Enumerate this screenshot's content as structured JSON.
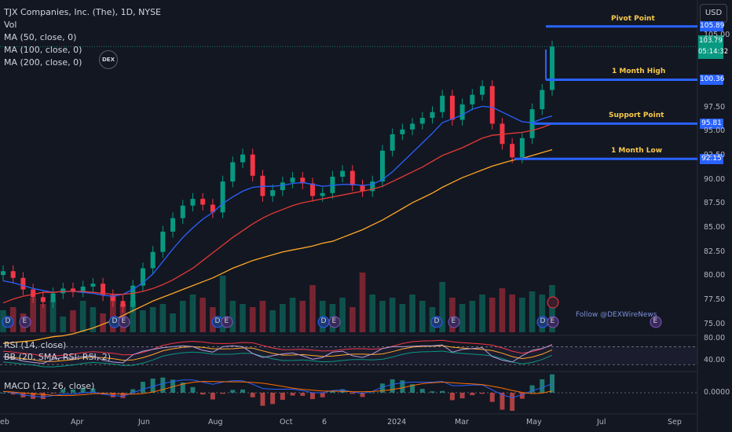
{
  "legend": {
    "title": "TJX Companies, Inc. (The), 1D, NYSE",
    "vol": "Vol",
    "ma50": "MA (50, close, 0)",
    "ma100": "MA (100, close, 0)",
    "ma200": "MA (200, close, 0)"
  },
  "currency_button": "USD",
  "logo_text": "DEX",
  "follow_text": "Follow @DEXWireNews",
  "rsi_legend": "RSI (14, close)",
  "bb_legend": "BB (20, SMA, RSI: RSI, 2)",
  "macd_legend": "MACD (12, 26, close)",
  "event_marker_labels": [
    "D",
    "E"
  ],
  "price_axis": [
    "105.00",
    "97.50",
    "95.00",
    "92.50",
    "90.00",
    "87.50",
    "85.00",
    "82.50",
    "80.00",
    "77.50",
    "75.00"
  ],
  "rsi_axis": [
    "80.00",
    "40.00"
  ],
  "macd_axis": [
    "0.0000"
  ],
  "time_axis": [
    "eb",
    "Apr",
    "Jun",
    "Aug",
    "Oct",
    "6",
    "2024",
    "Mar",
    "May",
    "Jul",
    "Sep"
  ],
  "last_price": {
    "price": "103.79",
    "countdown": "05:14:32",
    "color": "#089981"
  },
  "levels": [
    {
      "name": "Pivot Point",
      "price": "105.89",
      "value": 105.89
    },
    {
      "name": "1 Month High",
      "price": "100.36",
      "value": 100.36
    },
    {
      "name": "Support Point",
      "price": "95.81",
      "value": 95.81
    },
    {
      "name": "1 Month Low",
      "price": "92.15",
      "value": 92.15
    }
  ],
  "colors": {
    "background": "#131722",
    "up": "#089981",
    "down": "#f23645",
    "ma50": "#2962ff",
    "ma100": "#e53935",
    "ma200": "#ffa726",
    "level_line": "#2962ff",
    "level_label": "#f7c94a"
  },
  "chart_data": {
    "type": "line",
    "title": "TJX Companies, Inc. (The), 1D, NYSE",
    "ylim": [
      74,
      107
    ],
    "time_labels": [
      "Apr",
      "Jun",
      "Aug",
      "Oct",
      "6",
      "2024",
      "Mar",
      "May",
      "Jul",
      "Sep"
    ],
    "series": [
      {
        "name": "close",
        "values": [
          80.5,
          79.8,
          78.6,
          77.8,
          77.3,
          78.2,
          78.7,
          78.4,
          78.9,
          79.2,
          78.0,
          77.4,
          76.8,
          79.0,
          80.8,
          82.5,
          84.6,
          86.0,
          87.3,
          88.0,
          87.4,
          86.6,
          89.8,
          91.8,
          92.6,
          90.4,
          88.3,
          88.9,
          89.7,
          90.2,
          89.6,
          88.3,
          88.6,
          90.3,
          90.9,
          89.4,
          88.8,
          89.8,
          93.0,
          94.7,
          95.2,
          95.8,
          96.4,
          97.0,
          98.7,
          96.2,
          97.8,
          98.8,
          99.7,
          95.8,
          93.7,
          92.3,
          94.3,
          97.3,
          99.3,
          103.8
        ]
      },
      {
        "name": "MA (50, close, 0)",
        "values": [
          79.5,
          79.3,
          79.0,
          78.7,
          78.5,
          78.3,
          78.4,
          78.4,
          78.3,
          78.2,
          78.0,
          77.9,
          78.1,
          78.6,
          79.3,
          80.2,
          81.5,
          82.8,
          84.0,
          85.0,
          85.9,
          86.6,
          87.5,
          88.2,
          88.8,
          89.2,
          89.3,
          89.3,
          89.4,
          89.6,
          89.7,
          89.5,
          89.3,
          89.4,
          89.5,
          89.5,
          89.4,
          89.5,
          90.0,
          90.8,
          91.8,
          92.8,
          93.8,
          94.8,
          95.9,
          96.3,
          96.7,
          97.3,
          97.6,
          97.5,
          97.0,
          96.5,
          96.0,
          95.9,
          96.3,
          96.6
        ]
      },
      {
        "name": "MA (100, close, 0)",
        "values": [
          77.2,
          77.6,
          77.9,
          78.1,
          78.3,
          78.3,
          78.4,
          78.4,
          78.4,
          78.3,
          78.2,
          78.1,
          78.1,
          78.2,
          78.4,
          78.7,
          79.1,
          79.6,
          80.2,
          80.8,
          81.6,
          82.4,
          83.2,
          84.0,
          84.7,
          85.4,
          86.0,
          86.5,
          86.9,
          87.3,
          87.6,
          87.8,
          88.0,
          88.2,
          88.4,
          88.6,
          88.8,
          89.0,
          89.3,
          89.8,
          90.3,
          90.8,
          91.3,
          91.9,
          92.5,
          92.9,
          93.3,
          93.8,
          94.3,
          94.6,
          94.7,
          94.8,
          94.9,
          95.1,
          95.4,
          95.8
        ]
      },
      {
        "name": "MA (200, close, 0)",
        "values": [
          73.0,
          73.1,
          73.2,
          73.3,
          73.5,
          73.7,
          73.8,
          74.0,
          74.3,
          74.6,
          75.0,
          75.4,
          75.9,
          76.4,
          76.9,
          77.4,
          77.8,
          78.2,
          78.6,
          79.0,
          79.4,
          79.8,
          80.3,
          80.8,
          81.2,
          81.6,
          81.9,
          82.2,
          82.5,
          82.7,
          82.9,
          83.1,
          83.4,
          83.6,
          84.0,
          84.4,
          84.8,
          85.3,
          85.8,
          86.4,
          87.0,
          87.6,
          88.1,
          88.6,
          89.2,
          89.7,
          90.2,
          90.6,
          91.0,
          91.4,
          91.7,
          92.0,
          92.2,
          92.5,
          92.8,
          93.1
        ]
      }
    ],
    "volume": [
      0.35,
      0.4,
      0.3,
      0.55,
      0.45,
      0.5,
      0.25,
      0.35,
      0.5,
      0.4,
      0.3,
      0.6,
      0.45,
      0.5,
      0.35,
      0.4,
      0.45,
      0.3,
      0.5,
      0.6,
      0.55,
      0.4,
      0.9,
      0.5,
      0.45,
      0.4,
      0.5,
      0.35,
      0.45,
      0.55,
      0.5,
      0.75,
      0.5,
      0.45,
      0.55,
      0.4,
      0.95,
      0.6,
      0.5,
      0.55,
      0.45,
      0.6,
      0.5,
      0.4,
      0.8,
      0.55,
      0.45,
      0.5,
      0.6,
      0.55,
      0.7,
      0.6,
      0.55,
      0.65,
      0.6,
      0.75
    ],
    "rsi": [
      48,
      44,
      38,
      35,
      33,
      42,
      46,
      44,
      48,
      50,
      40,
      36,
      34,
      52,
      60,
      64,
      68,
      70,
      72,
      70,
      62,
      58,
      70,
      72,
      70,
      55,
      46,
      50,
      54,
      56,
      50,
      42,
      46,
      58,
      60,
      50,
      46,
      54,
      66,
      70,
      70,
      71,
      72,
      72,
      74,
      58,
      64,
      66,
      68,
      48,
      40,
      36,
      50,
      62,
      66,
      74
    ],
    "macd": [
      0.2,
      0.0,
      -0.3,
      -0.5,
      -0.6,
      -0.4,
      -0.2,
      -0.2,
      0.0,
      0.1,
      -0.2,
      -0.4,
      -0.5,
      0.0,
      0.5,
      0.9,
      1.3,
      1.6,
      1.8,
      1.8,
      1.5,
      1.2,
      1.5,
      1.7,
      1.7,
      1.2,
      0.6,
      0.5,
      0.5,
      0.5,
      0.3,
      0.0,
      0.0,
      0.3,
      0.4,
      0.1,
      -0.1,
      0.2,
      0.8,
      1.2,
      1.4,
      1.5,
      1.5,
      1.5,
      1.6,
      1.0,
      1.0,
      1.1,
      1.1,
      0.4,
      -0.3,
      -0.7,
      -0.3,
      0.3,
      0.7,
      1.3
    ]
  }
}
